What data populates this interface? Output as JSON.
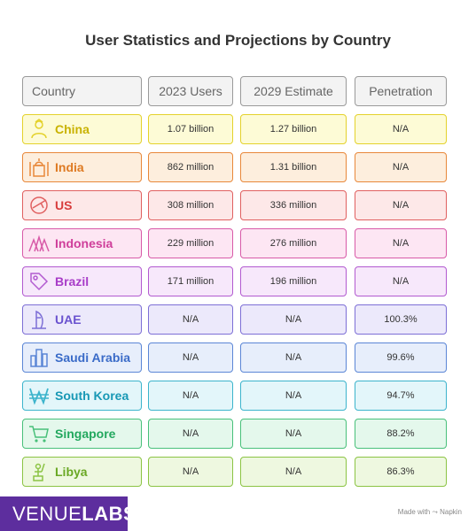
{
  "title": "User Statistics and Projections by Country",
  "headers": [
    "Country",
    "2023 Users",
    "2029 Estimate",
    "Penetration"
  ],
  "rows": [
    {
      "country": "China",
      "users_2023": "1.07 billion",
      "estimate_2029": "1.27 billion",
      "penetration": "N/A",
      "icon": "person-icon",
      "colors": {
        "fill": "#fdfbd6",
        "border": "#e4d22c",
        "text": "#c9b200"
      }
    },
    {
      "country": "India",
      "users_2023": "862 million",
      "estimate_2029": "1.31 billion",
      "penetration": "N/A",
      "icon": "taj-mahal-icon",
      "colors": {
        "fill": "#fdeedd",
        "border": "#e8883a",
        "text": "#de7a22"
      }
    },
    {
      "country": "US",
      "users_2023": "308 million",
      "estimate_2029": "336 million",
      "penetration": "N/A",
      "icon": "globe-plane-icon",
      "colors": {
        "fill": "#fde8e8",
        "border": "#e06060",
        "text": "#d83c3c"
      }
    },
    {
      "country": "Indonesia",
      "users_2023": "229 million",
      "estimate_2029": "276 million",
      "penetration": "N/A",
      "icon": "mountains-icon",
      "colors": {
        "fill": "#fde6f3",
        "border": "#d85aa8",
        "text": "#cf3e9a"
      }
    },
    {
      "country": "Brazil",
      "users_2023": "171 million",
      "estimate_2029": "196 million",
      "penetration": "N/A",
      "icon": "price-tag-icon",
      "colors": {
        "fill": "#f7e8fb",
        "border": "#b25ad0",
        "text": "#a83cc8"
      }
    },
    {
      "country": "UAE",
      "users_2023": "N/A",
      "estimate_2029": "N/A",
      "penetration": "100.3%",
      "icon": "burj-al-arab-icon",
      "colors": {
        "fill": "#ece9fb",
        "border": "#7d6fd6",
        "text": "#6a52cf"
      }
    },
    {
      "country": "Saudi Arabia",
      "users_2023": "N/A",
      "estimate_2029": "N/A",
      "penetration": "99.6%",
      "icon": "skyscrapers-icon",
      "colors": {
        "fill": "#e7eefb",
        "border": "#5b86d6",
        "text": "#3a6bc8"
      }
    },
    {
      "country": "South Korea",
      "users_2023": "N/A",
      "estimate_2029": "N/A",
      "penetration": "94.7%",
      "icon": "won-currency-icon",
      "colors": {
        "fill": "#e3f6fa",
        "border": "#3cb4cc",
        "text": "#1898b5"
      }
    },
    {
      "country": "Singapore",
      "users_2023": "N/A",
      "estimate_2029": "N/A",
      "penetration": "88.2%",
      "icon": "shopping-cart-icon",
      "colors": {
        "fill": "#e4f8ec",
        "border": "#48c07a",
        "text": "#22a85e"
      }
    },
    {
      "country": "Libya",
      "users_2023": "N/A",
      "estimate_2029": "N/A",
      "penetration": "86.3%",
      "icon": "statue-icon",
      "colors": {
        "fill": "#eef8e0",
        "border": "#8cc444",
        "text": "#6aa824"
      }
    }
  ],
  "footer": {
    "logo_text_1": "VENUE",
    "logo_text_2": "LABS",
    "logo_color": "#5d2e9e",
    "made_with": "Made with ⤳ Napkin"
  }
}
